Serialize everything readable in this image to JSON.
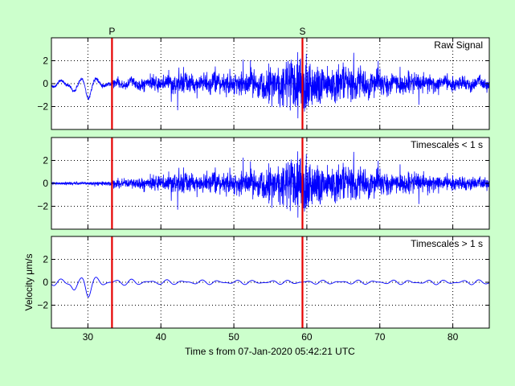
{
  "figure": {
    "background": "#ccffcc",
    "axes_background": "#ffffff",
    "signal_color": "#0000ff",
    "marker_color": "#e60000"
  },
  "chart_data": [
    {
      "type": "line",
      "panel": "raw",
      "label": "Raw Signal",
      "envelope_bias": 0.0,
      "xlim": [
        25,
        85
      ],
      "ylim": [
        -4,
        4
      ],
      "yticks": [
        -2,
        0,
        2
      ],
      "xticks": [
        30,
        40,
        50,
        60,
        70,
        80
      ],
      "grid": true,
      "picks": [
        {
          "name": "P",
          "x": 33.3
        },
        {
          "name": "S",
          "x": 59.4
        }
      ]
    },
    {
      "type": "line",
      "panel": "short",
      "label": "Timescales < 1 s",
      "envelope_bias": -0.1,
      "xlim": [
        25,
        85
      ],
      "ylim": [
        -4,
        4
      ],
      "yticks": [
        -2,
        0,
        2
      ],
      "xticks": [
        30,
        40,
        50,
        60,
        70,
        80
      ],
      "grid": true,
      "picks": [
        {
          "name": "",
          "x": 33.3
        },
        {
          "name": "",
          "x": 59.4
        }
      ]
    },
    {
      "type": "line",
      "panel": "long",
      "label": "Timescales > 1 s",
      "envelope_bias": 0.0,
      "xlim": [
        25,
        85
      ],
      "ylim": [
        -4,
        4
      ],
      "yticks": [
        -2,
        0,
        2
      ],
      "xticks": [
        30,
        40,
        50,
        60,
        70,
        80
      ],
      "grid": true,
      "ylabel": "Velocity μm/s",
      "xlabel": "Time s from 07-Jan-2020 05:42:21 UTC",
      "picks": [
        {
          "name": "",
          "x": 33.3
        },
        {
          "name": "",
          "x": 59.4
        }
      ]
    }
  ],
  "signal_model": {
    "hf_envelope_knots": [
      [
        25,
        0.1
      ],
      [
        33,
        0.15
      ],
      [
        33.5,
        0.3
      ],
      [
        40,
        0.55
      ],
      [
        41.5,
        1.0
      ],
      [
        45,
        0.65
      ],
      [
        50,
        0.8
      ],
      [
        54,
        1.1
      ],
      [
        56,
        1.6
      ],
      [
        57.5,
        2.2
      ],
      [
        59,
        2.5
      ],
      [
        60,
        2.4
      ],
      [
        62,
        1.5
      ],
      [
        66,
        1.3
      ],
      [
        70,
        0.9
      ],
      [
        75,
        0.7
      ],
      [
        80,
        0.55
      ],
      [
        85,
        0.4
      ]
    ],
    "lf_amplitude_knots": [
      [
        25,
        0.3
      ],
      [
        28,
        0.55
      ],
      [
        30,
        0.65
      ],
      [
        33,
        0.35
      ],
      [
        40,
        0.25
      ],
      [
        60,
        0.2
      ],
      [
        85,
        0.25
      ]
    ],
    "lf_events": [
      [
        28.1,
        -0.55
      ],
      [
        30.0,
        -0.75
      ]
    ]
  }
}
